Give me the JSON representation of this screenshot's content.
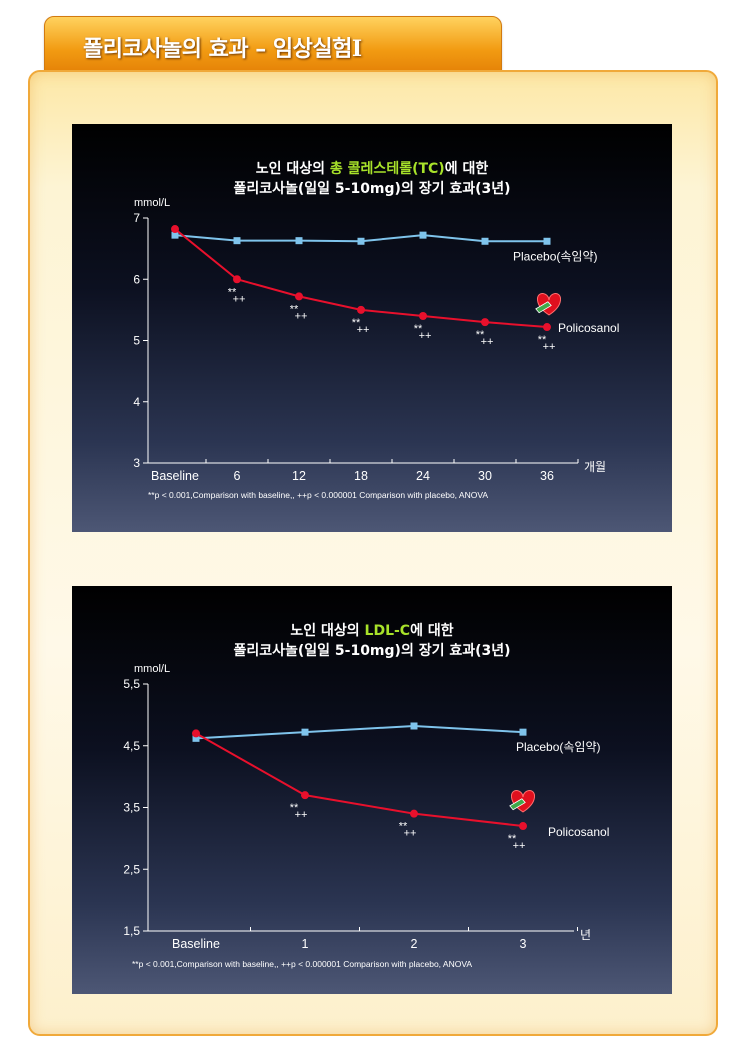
{
  "header": {
    "title": "폴리코사놀의 효과 – 임상실험Ⅰ"
  },
  "colors": {
    "placebo": "#7fc4ec",
    "policosanol": "#e8102c",
    "highlight": "#a8e22a"
  },
  "chart_data": [
    {
      "type": "line",
      "title_line1_prefix": "노인 대상의 ",
      "title_line1_highlight": "총 콜레스테롤(TC)",
      "title_line1_suffix": "에 대한",
      "title_line2": "폴리코사놀(일일 5-10mg)의 장기 효과(3년)",
      "ylabel": "mmol/L",
      "xlabel": "개월",
      "ylim": [
        3,
        7
      ],
      "yticks": [
        "3",
        "4",
        "5",
        "6",
        "7"
      ],
      "categories": [
        "Baseline",
        "6",
        "12",
        "18",
        "24",
        "30",
        "36"
      ],
      "series": [
        {
          "name": "Placebo(속임약)",
          "values": [
            6.72,
            6.63,
            6.63,
            6.62,
            6.72,
            6.62,
            6.62
          ]
        },
        {
          "name": "Policosanol",
          "values": [
            6.82,
            6.0,
            5.72,
            5.5,
            5.4,
            5.3,
            5.22
          ]
        }
      ],
      "significance": {
        "star": "**",
        "plus": "++"
      },
      "footnote": "**p < 0.001,Comparison with baseline,, ++p < 0.000001 Comparison with placebo, ANOVA"
    },
    {
      "type": "line",
      "title_line1_prefix": "노인 대상의 ",
      "title_line1_highlight": "LDL-C",
      "title_line1_suffix": "에 대한",
      "title_line2": "폴리코사놀(일일 5-10mg)의 장기 효과(3년)",
      "ylabel": "mmol/L",
      "xlabel": "년",
      "ylim": [
        1.5,
        5.5
      ],
      "yticks": [
        "1,5",
        "2,5",
        "3,5",
        "4,5",
        "5,5"
      ],
      "categories": [
        "Baseline",
        "1",
        "2",
        "3"
      ],
      "series": [
        {
          "name": "Placebo(속임약)",
          "values": [
            4.62,
            4.72,
            4.82,
            4.72
          ]
        },
        {
          "name": "Policosanol",
          "values": [
            4.7,
            3.7,
            3.4,
            3.2
          ]
        }
      ],
      "significance": {
        "star": "**",
        "plus": "++"
      },
      "footnote": "**p < 0.001,Comparison with baseline,, ++p < 0.000001 Comparison with placebo, ANOVA"
    }
  ]
}
